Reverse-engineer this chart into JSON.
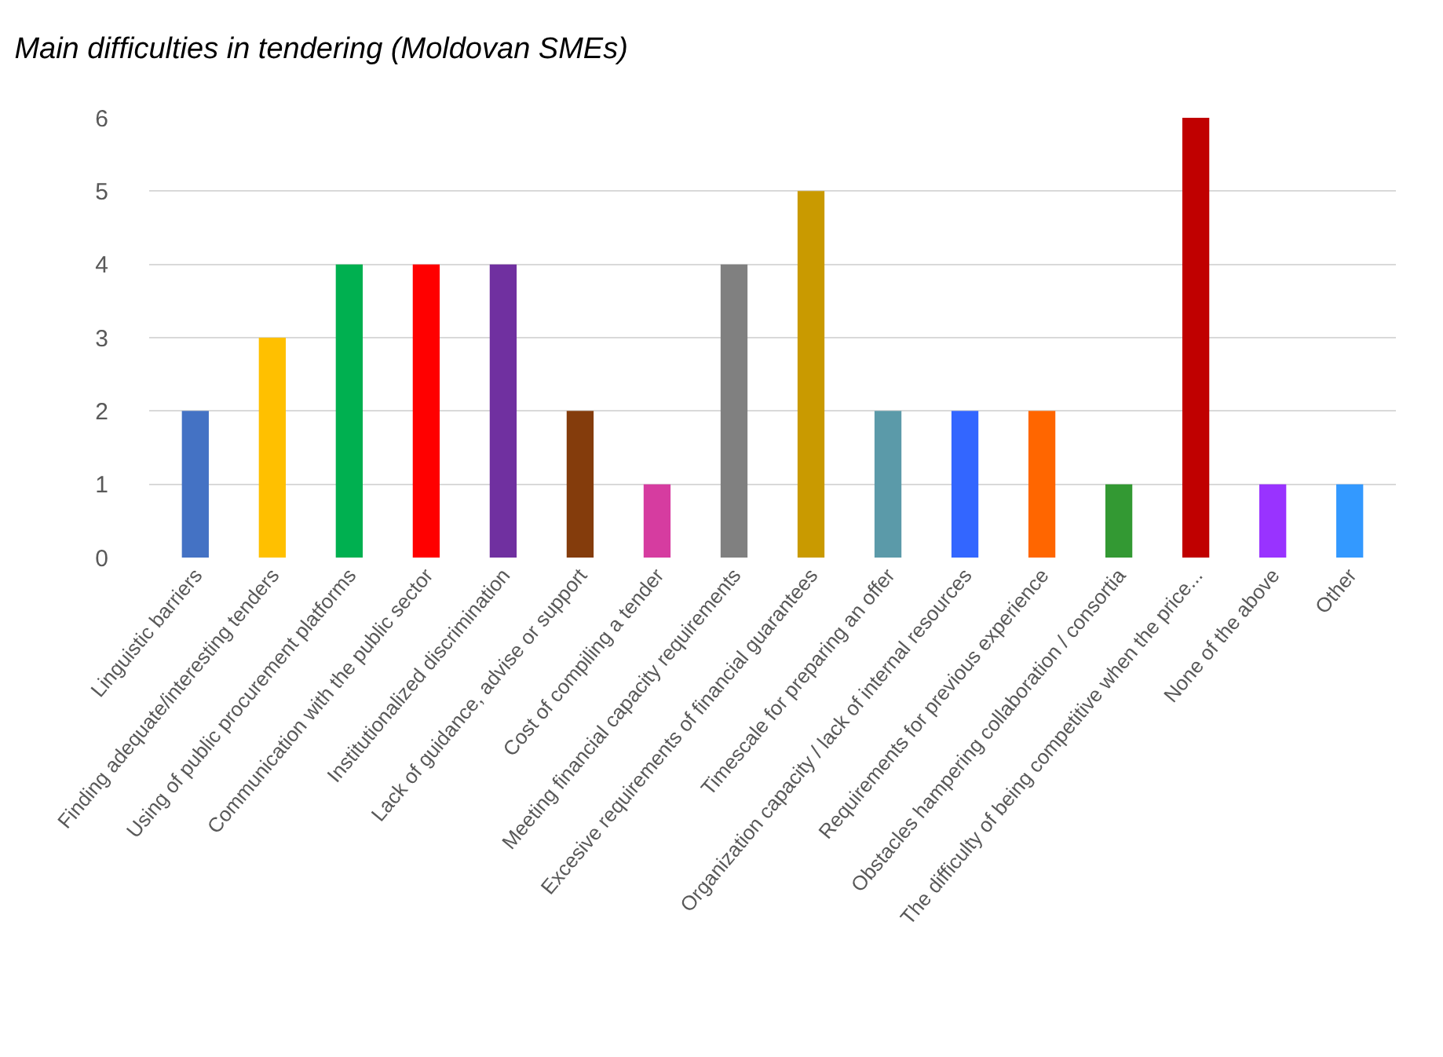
{
  "chart_data": {
    "type": "bar",
    "title": "Main difficulties in tendering (Moldovan SMEs)",
    "categories": [
      "Linguistic barriers",
      "Finding adequate/interesting tenders",
      "Using of public procurement platforms",
      "Communication with the public sector",
      "Institutionalized discrimination",
      "Lack of guidance, advise or support",
      "Cost of compiling a tender",
      "Meeting financial capacity requirements",
      "Excesive requirements of financial guarantees",
      "Timescale for preparing an offer",
      "Organization capacity / lack of internal resources",
      "Requirements for previous experience",
      "Obstacles hampering collaboration / consortia",
      "The difficulty of being competitive when the price...",
      "None of the above",
      "Other"
    ],
    "values": [
      2,
      3,
      4,
      4,
      4,
      2,
      1,
      4,
      5,
      2,
      2,
      2,
      1,
      6,
      1,
      1
    ],
    "colors": [
      "#4472c4",
      "#ffc000",
      "#00b050",
      "#ff0000",
      "#7030a0",
      "#843c0c",
      "#d63ca0",
      "#808080",
      "#c99a00",
      "#5b9aa9",
      "#3366ff",
      "#ff6600",
      "#339933",
      "#c00000",
      "#9933ff",
      "#3399ff"
    ],
    "ylim": [
      0,
      6
    ],
    "yticks": [
      0,
      1,
      2,
      3,
      4,
      5,
      6
    ],
    "grid": "y"
  }
}
